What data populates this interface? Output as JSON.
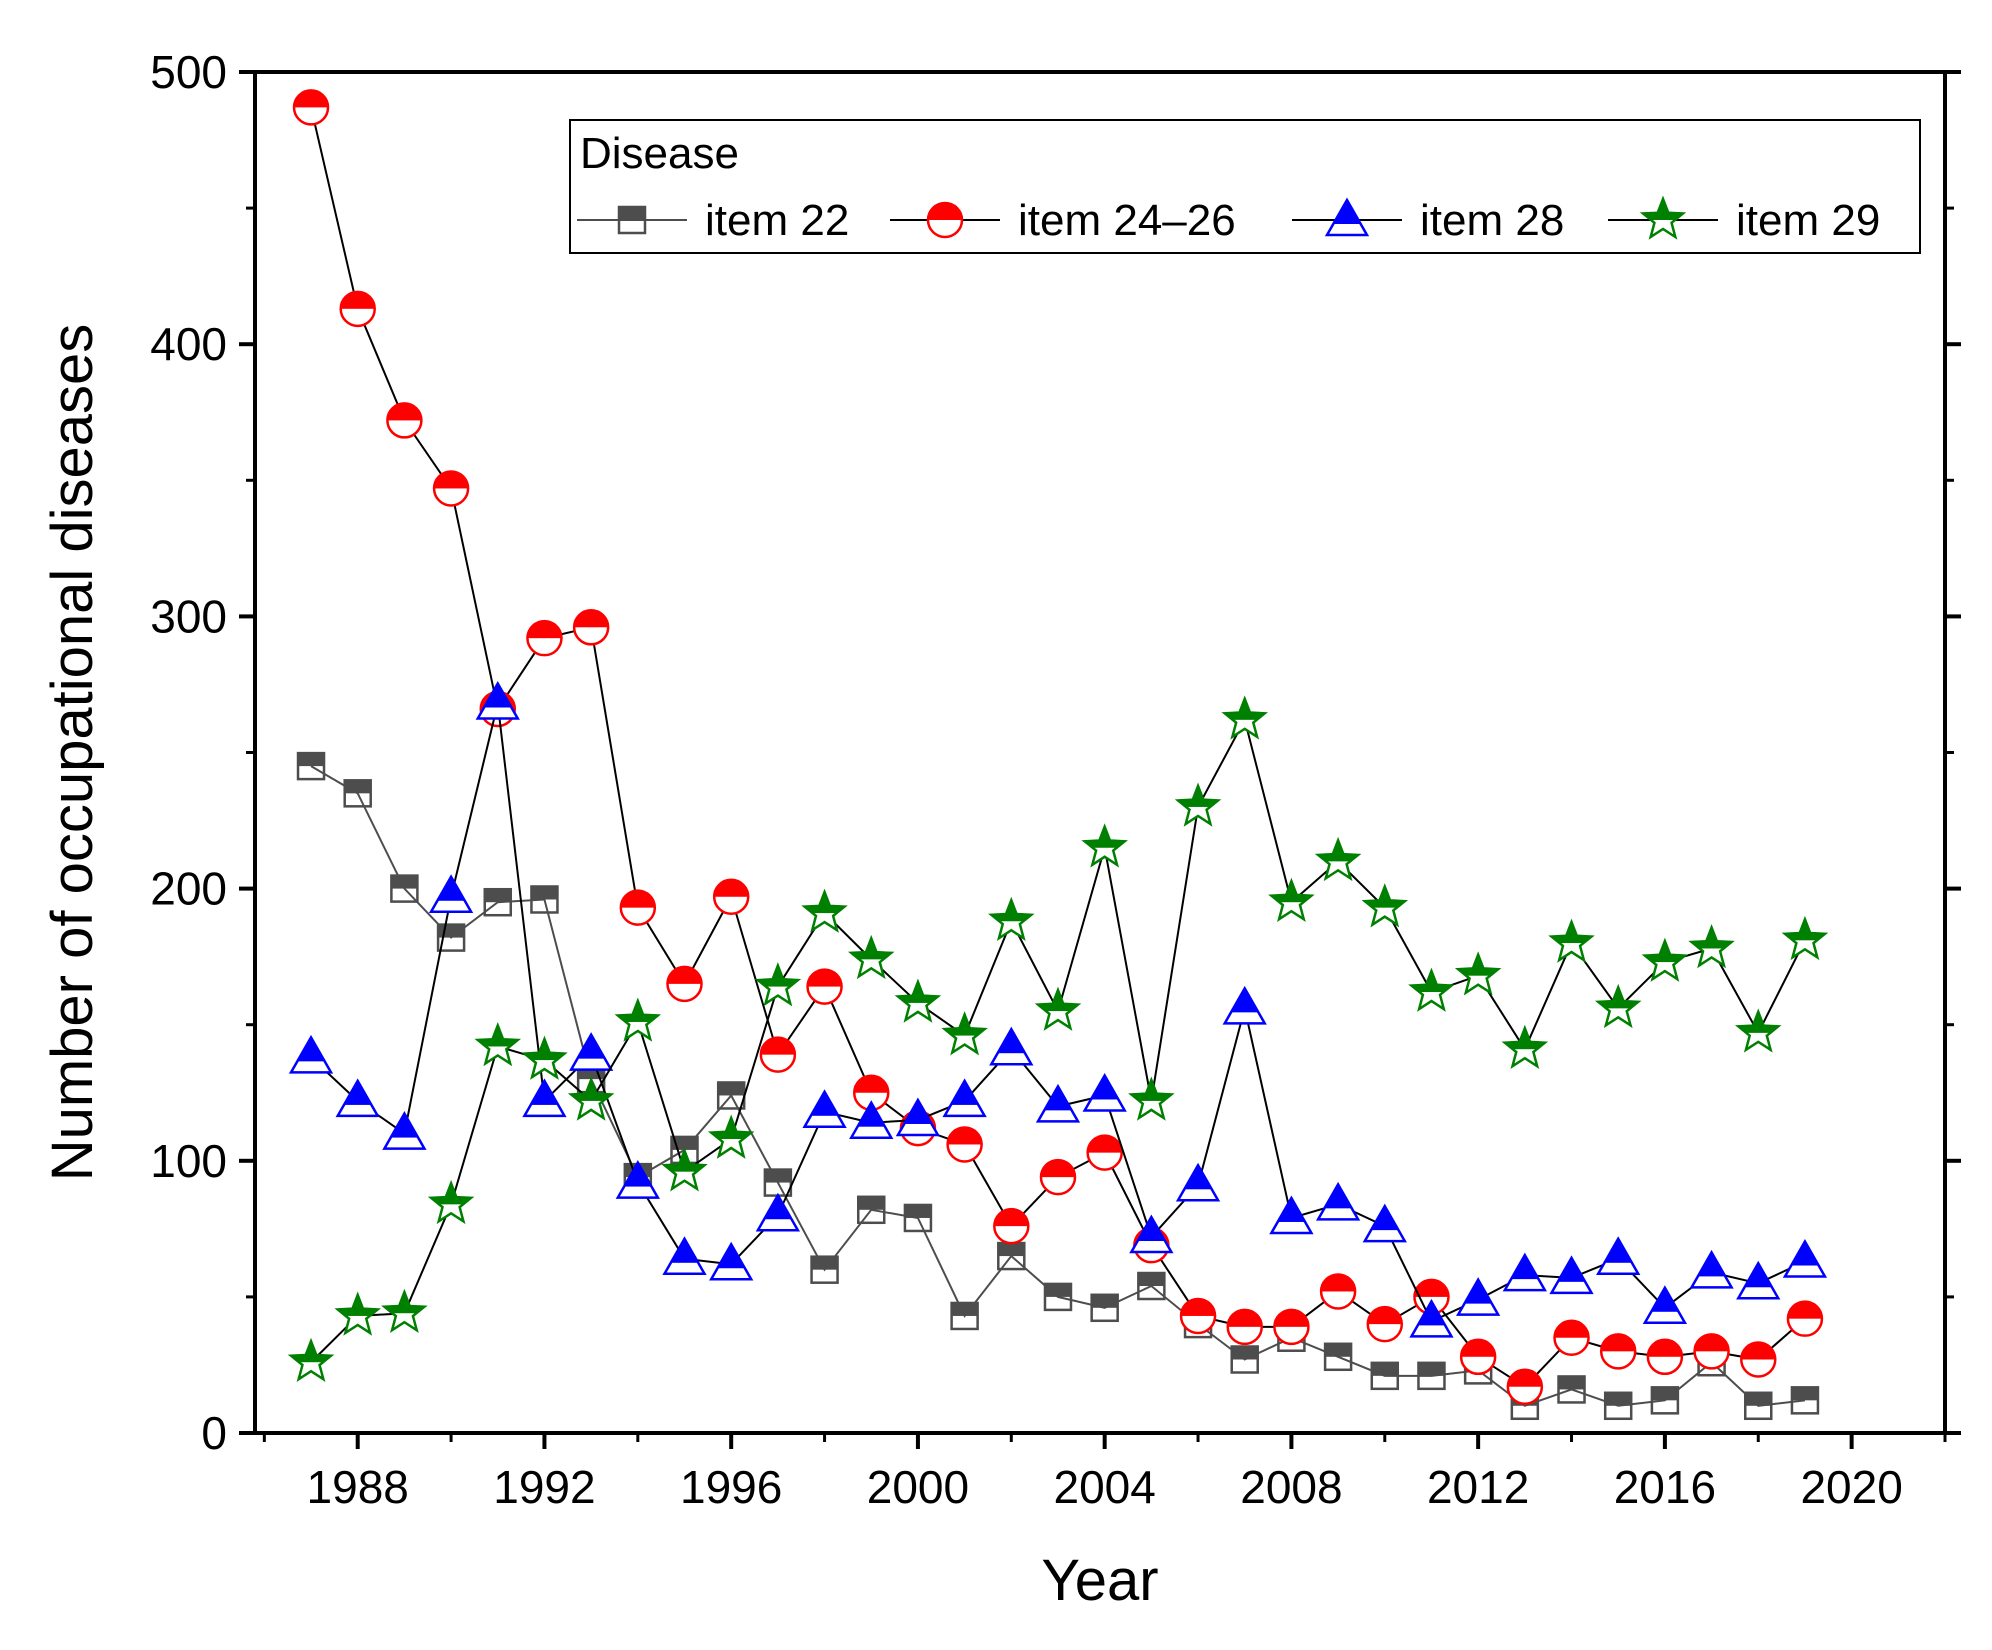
{
  "chart_data": {
    "type": "line",
    "xlabel": "Year",
    "ylabel": "Number of occupational diseases",
    "xlim": [
      1985.8,
      2022
    ],
    "ylim": [
      0,
      500
    ],
    "x_ticks": [
      1988,
      1992,
      1996,
      2000,
      2004,
      2008,
      2012,
      2016,
      2020
    ],
    "x_tick_labels": [
      "1988",
      "1992",
      "1996",
      "2000",
      "2004",
      "2008",
      "2012",
      "2016",
      "2020"
    ],
    "y_ticks": [
      0,
      100,
      200,
      300,
      400,
      500
    ],
    "y_tick_labels": [
      "0",
      "100",
      "200",
      "300",
      "400",
      "500"
    ],
    "legend": {
      "title": "Disease",
      "placement": "top-right"
    },
    "x": [
      1987,
      1988,
      1989,
      1990,
      1991,
      1992,
      1993,
      1994,
      1995,
      1996,
      1997,
      1998,
      1999,
      2000,
      2001,
      2002,
      2003,
      2004,
      2005,
      2006,
      2007,
      2008,
      2009,
      2010,
      2011,
      2012,
      2013,
      2014,
      2015,
      2016,
      2017,
      2018,
      2019
    ],
    "series": [
      {
        "name": "item 22",
        "marker": "square",
        "color": "#4d4d4d",
        "line_color": "#4d4d4d",
        "values": [
          245,
          235,
          200,
          182,
          195,
          196,
          130,
          94,
          104,
          124,
          92,
          60,
          82,
          79,
          43,
          65,
          50,
          46,
          54,
          40,
          27,
          35,
          28,
          21,
          21,
          23,
          10,
          16,
          10,
          12,
          26,
          10,
          12
        ]
      },
      {
        "name": "item 24–26",
        "marker": "circle",
        "color": "#ff0000",
        "line_color": "#000000",
        "values": [
          487,
          413,
          372,
          347,
          266,
          292,
          296,
          193,
          165,
          197,
          139,
          164,
          125,
          112,
          106,
          76,
          94,
          103,
          69,
          43,
          39,
          39,
          52,
          40,
          50,
          28,
          17,
          35,
          30,
          28,
          30,
          27,
          42
        ]
      },
      {
        "name": "item 28",
        "marker": "triangle",
        "color": "#0000ff",
        "line_color": "#000000",
        "values": [
          138,
          122,
          110,
          197,
          268,
          122,
          139,
          92,
          64,
          62,
          80,
          118,
          114,
          115,
          122,
          141,
          120,
          124,
          72,
          91,
          156,
          79,
          84,
          76,
          41,
          49,
          58,
          57,
          64,
          46,
          59,
          55,
          63
        ]
      },
      {
        "name": "item 29",
        "marker": "star",
        "color": "#008000",
        "line_color": "#000000",
        "values": [
          26,
          43,
          44,
          84,
          142,
          137,
          122,
          151,
          96,
          108,
          164,
          191,
          174,
          158,
          146,
          188,
          155,
          215,
          122,
          230,
          262,
          195,
          210,
          193,
          162,
          168,
          141,
          180,
          156,
          173,
          178,
          147,
          181
        ]
      }
    ]
  }
}
